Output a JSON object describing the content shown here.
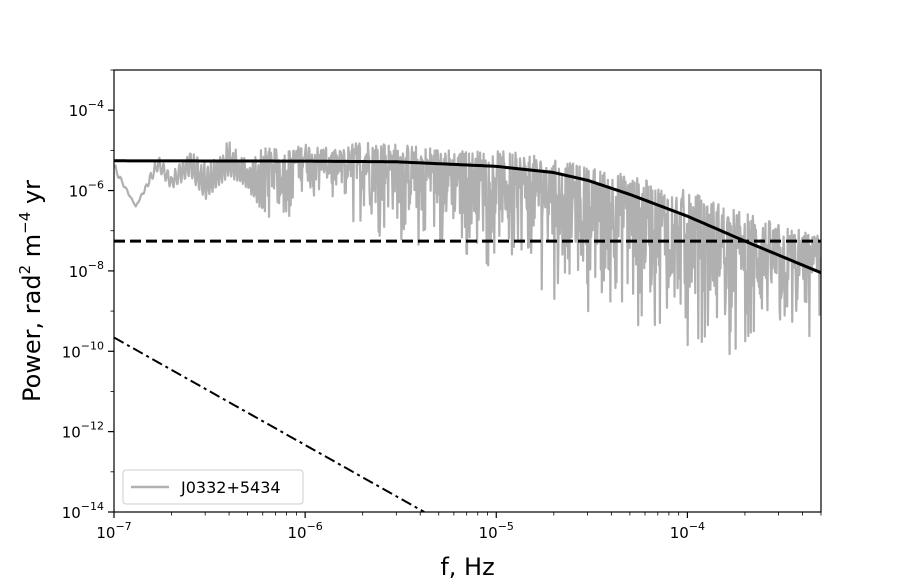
{
  "chart_data": {
    "type": "line",
    "title": "",
    "xlabel": "f, Hz",
    "ylabel_base": "Power, rad",
    "ylabel_sup1": "2",
    "ylabel_mid": " m",
    "ylabel_sup2": "−4",
    "ylabel_end": " yr",
    "x_scale": "log",
    "y_scale": "log",
    "xlim": [
      1e-07,
      0.0005
    ],
    "ylim": [
      1e-14,
      0.001
    ],
    "x_ticks": [
      {
        "value": 1e-07,
        "base": "10",
        "exp": "−7"
      },
      {
        "value": 1e-06,
        "base": "10",
        "exp": "−6"
      },
      {
        "value": 1e-05,
        "base": "10",
        "exp": "−5"
      },
      {
        "value": 0.0001,
        "base": "10",
        "exp": "−4"
      }
    ],
    "y_ticks": [
      {
        "value": 1e-14,
        "base": "10",
        "exp": "−14"
      },
      {
        "value": 1e-12,
        "base": "10",
        "exp": "−12"
      },
      {
        "value": 1e-10,
        "base": "10",
        "exp": "−10"
      },
      {
        "value": 1e-08,
        "base": "10",
        "exp": "−8"
      },
      {
        "value": 1e-06,
        "base": "10",
        "exp": "−6"
      },
      {
        "value": 0.0001,
        "base": "10",
        "exp": "−4"
      }
    ],
    "grid": false,
    "legend_position": "lower-left",
    "series": [
      {
        "name": "J0332+5434",
        "style": "noisy-spectrum",
        "color": "#b0b0b0",
        "x": [
          1e-07,
          1.3e-07,
          1.7e-07,
          2e-07,
          2.5e-07,
          3e-07,
          4e-07,
          5e-07,
          6e-07,
          8e-07,
          1e-06,
          1.5e-06,
          2e-06,
          3e-06,
          5e-06,
          7e-06,
          1e-05,
          1.5e-05,
          2e-05,
          3e-05,
          5e-05,
          7e-05,
          0.0001,
          0.00015,
          0.0002,
          0.0003,
          0.0005
        ],
        "y": [
          5e-06,
          4e-07,
          8e-06,
          3e-06,
          1.5e-05,
          5e-06,
          1.8e-05,
          6e-06,
          1.2e-05,
          1e-05,
          1.5e-05,
          1e-05,
          2e-05,
          1.5e-05,
          1.2e-05,
          1e-05,
          1e-05,
          8e-06,
          6e-06,
          4e-06,
          2.5e-06,
          1.5e-06,
          1e-06,
          5e-07,
          3e-07,
          1.5e-07,
          8e-08
        ],
        "band_low": [
          3e-06,
          4e-07,
          3e-06,
          1e-06,
          2e-06,
          5e-07,
          2e-06,
          1e-06,
          2e-07,
          1e-07,
          8e-07,
          2e-07,
          1e-07,
          5e-08,
          3e-08,
          2e-08,
          1e-08,
          5e-09,
          2e-09,
          1e-09,
          5e-10,
          2e-10,
          1e-10,
          1e-10,
          5e-11,
          3e-11,
          2e-10
        ]
      },
      {
        "name": "",
        "style": "solid",
        "color": "#000000",
        "x": [
          1e-07,
          1e-06,
          3e-06,
          1e-05,
          2e-05,
          3e-05,
          5e-05,
          0.0001,
          0.0002,
          0.0005
        ],
        "y": [
          5.5e-06,
          5.4e-06,
          5.2e-06,
          4e-06,
          2.8e-06,
          1.8e-06,
          8e-07,
          2.3e-07,
          5.5e-08,
          9e-09
        ]
      },
      {
        "name": "",
        "style": "dashed",
        "color": "#000000",
        "x": [
          1e-07,
          0.0005
        ],
        "y": [
          5.5e-08,
          5.5e-08
        ]
      },
      {
        "name": "",
        "style": "dashdot",
        "color": "#000000",
        "x": [
          1e-07,
          4.2e-06
        ],
        "y": [
          2.2e-10,
          1e-14
        ]
      }
    ]
  }
}
